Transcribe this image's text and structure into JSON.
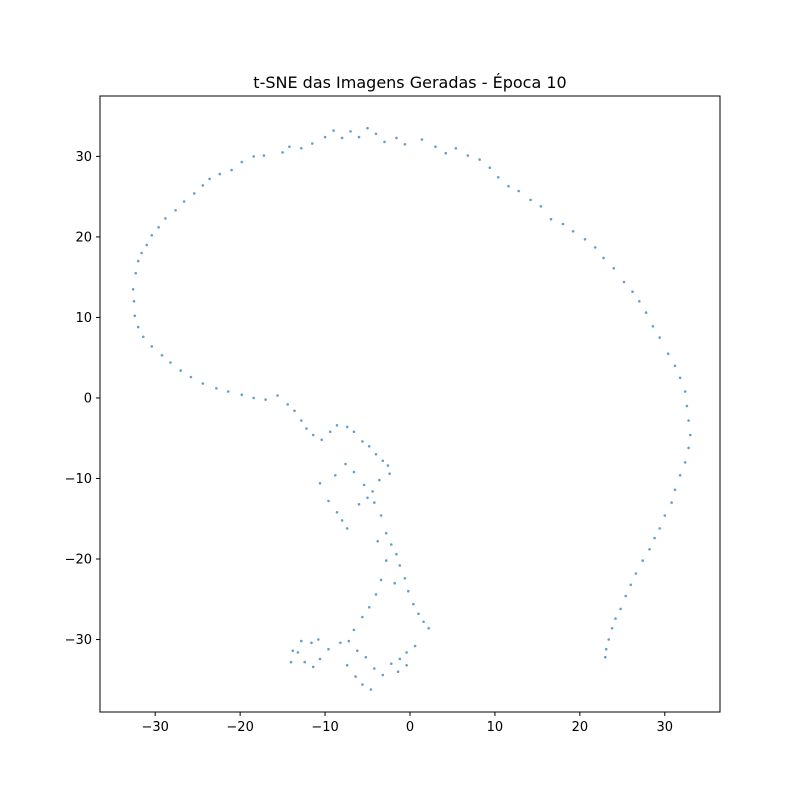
{
  "chart_data": {
    "type": "scatter",
    "title": "t-SNE das Imagens Geradas - Época 10",
    "xlabel": "",
    "ylabel": "",
    "xlim": [
      -36.5,
      36.5
    ],
    "ylim": [
      -39,
      37.5
    ],
    "xticks": [
      -30,
      -20,
      -10,
      0,
      10,
      20,
      30
    ],
    "yticks": [
      -30,
      -20,
      -10,
      0,
      10,
      20,
      30
    ],
    "xtick_labels": [
      "−30",
      "−20",
      "−10",
      "0",
      "10",
      "20",
      "30"
    ],
    "ytick_labels": [
      "−30",
      "−20",
      "−10",
      "0",
      "10",
      "20",
      "30"
    ],
    "grid": false,
    "legend": "none",
    "marker_color": "#1f77b4",
    "series": [
      {
        "points": [
          [
            -32.5,
            12
          ],
          [
            -32.6,
            13.5
          ],
          [
            -32.3,
            15.5
          ],
          [
            -32,
            17
          ],
          [
            -31.6,
            18
          ],
          [
            -31,
            19
          ],
          [
            -30.4,
            20.2
          ],
          [
            -29.6,
            21.2
          ],
          [
            -28.8,
            22.3
          ],
          [
            -27.6,
            23.3
          ],
          [
            -26.6,
            24.4
          ],
          [
            -25.4,
            25.4
          ],
          [
            -24.4,
            26.4
          ],
          [
            -23.6,
            27.2
          ],
          [
            -22.4,
            27.8
          ],
          [
            -21,
            28.3
          ],
          [
            -19.8,
            29.3
          ],
          [
            -18.4,
            30
          ],
          [
            -17.2,
            30.1
          ],
          [
            -15,
            30.5
          ],
          [
            -14.2,
            31.2
          ],
          [
            -12.8,
            31
          ],
          [
            -11.5,
            31.6
          ],
          [
            -10,
            32.4
          ],
          [
            -9,
            33.2
          ],
          [
            -8,
            32.3
          ],
          [
            -7,
            33.1
          ],
          [
            -6,
            32.4
          ],
          [
            -5,
            33.5
          ],
          [
            -4,
            32.8
          ],
          [
            -3,
            31.8
          ],
          [
            -1.6,
            32.3
          ],
          [
            -0.6,
            31.5
          ],
          [
            1.4,
            32.1
          ],
          [
            3,
            31.2
          ],
          [
            4.2,
            30.4
          ],
          [
            5.4,
            31
          ],
          [
            6.8,
            30.1
          ],
          [
            8.2,
            29.6
          ],
          [
            9.4,
            28.6
          ],
          [
            10.4,
            27.4
          ],
          [
            11.6,
            26.3
          ],
          [
            12.8,
            25.7
          ],
          [
            14.2,
            24.6
          ],
          [
            15.4,
            23.8
          ],
          [
            16.6,
            22.2
          ],
          [
            18,
            21.6
          ],
          [
            19.2,
            20.7
          ],
          [
            20.6,
            19.7
          ],
          [
            21.8,
            18.7
          ],
          [
            22.8,
            17.4
          ],
          [
            24,
            16.1
          ],
          [
            25.2,
            14.4
          ],
          [
            26.2,
            13.2
          ],
          [
            27,
            12
          ],
          [
            27.8,
            10.6
          ],
          [
            28.6,
            8.9
          ],
          [
            29.4,
            7.5
          ],
          [
            30.4,
            5.5
          ],
          [
            31.2,
            4
          ],
          [
            31.8,
            2.5
          ],
          [
            32.4,
            0.8
          ],
          [
            32.6,
            -1
          ],
          [
            32.8,
            -2.8
          ],
          [
            33,
            -4.6
          ],
          [
            32.8,
            -6.2
          ],
          [
            32.4,
            -8
          ],
          [
            31.8,
            -9.6
          ],
          [
            31.2,
            -11.4
          ],
          [
            30.8,
            -13
          ],
          [
            30,
            -14.6
          ],
          [
            29.4,
            -16.2
          ],
          [
            28.8,
            -17.4
          ],
          [
            28.2,
            -18.8
          ],
          [
            27.4,
            -20.2
          ],
          [
            26.6,
            -21.8
          ],
          [
            26,
            -23.2
          ],
          [
            25.4,
            -24.6
          ],
          [
            24.8,
            -26.2
          ],
          [
            24.2,
            -27.4
          ],
          [
            23.8,
            -28.6
          ],
          [
            23.4,
            -30
          ],
          [
            23.1,
            -31.2
          ],
          [
            23,
            -32.2
          ],
          [
            -32.4,
            10.2
          ],
          [
            -32,
            8.8
          ],
          [
            -31.4,
            7.6
          ],
          [
            -30.4,
            6.4
          ],
          [
            -29.2,
            5.3
          ],
          [
            -28.2,
            4.4
          ],
          [
            -27,
            3.4
          ],
          [
            -25.8,
            2.6
          ],
          [
            -24.4,
            1.8
          ],
          [
            -22.8,
            1.2
          ],
          [
            -21.4,
            0.8
          ],
          [
            -19.8,
            0.4
          ],
          [
            -18.4,
            0
          ],
          [
            -17,
            -0.2
          ],
          [
            -15.6,
            0.3
          ],
          [
            -14.4,
            -0.8
          ],
          [
            -13.6,
            -1.6
          ],
          [
            -12.8,
            -2.8
          ],
          [
            -12.2,
            -3.8
          ],
          [
            -11.4,
            -4.6
          ],
          [
            -10.4,
            -5.2
          ],
          [
            -9.4,
            -4.2
          ],
          [
            -8.6,
            -3.4
          ],
          [
            -7.4,
            -3.6
          ],
          [
            -6.6,
            -4.2
          ],
          [
            -5.6,
            -5.4
          ],
          [
            -4.8,
            -6
          ],
          [
            -4,
            -7
          ],
          [
            -3.2,
            -7.8
          ],
          [
            -2.6,
            -8.4
          ],
          [
            -10.6,
            -10.6
          ],
          [
            -9.6,
            -12.8
          ],
          [
            -8.6,
            -14.2
          ],
          [
            -8,
            -15.2
          ],
          [
            -7.4,
            -16.2
          ],
          [
            -6,
            -13.2
          ],
          [
            -5,
            -12.4
          ],
          [
            -4.2,
            -13
          ],
          [
            -3.4,
            -14.6
          ],
          [
            -2.8,
            -16.8
          ],
          [
            -2.2,
            -18.2
          ],
          [
            -1.6,
            -19.4
          ],
          [
            -1.2,
            -20.8
          ],
          [
            -0.6,
            -22.4
          ],
          [
            -0.2,
            -24
          ],
          [
            0.4,
            -25.6
          ],
          [
            1,
            -26.8
          ],
          [
            1.6,
            -27.8
          ],
          [
            2.2,
            -28.6
          ],
          [
            -3.4,
            -22.6
          ],
          [
            -4,
            -24.4
          ],
          [
            -4.8,
            -26
          ],
          [
            -5.6,
            -27.2
          ],
          [
            -6.6,
            -28.8
          ],
          [
            -7.2,
            -30.2
          ],
          [
            -6.2,
            -31.4
          ],
          [
            -5.2,
            -32.2
          ],
          [
            -4.2,
            -33.6
          ],
          [
            -3.2,
            -34.4
          ],
          [
            -2.2,
            -33
          ],
          [
            -1.2,
            -32.4
          ],
          [
            -0.4,
            -31.6
          ],
          [
            0.6,
            -30.8
          ],
          [
            -6.4,
            -34.6
          ],
          [
            -5.6,
            -35.6
          ],
          [
            -4.6,
            -36.2
          ],
          [
            -1.4,
            -34
          ],
          [
            -0.4,
            -33.2
          ],
          [
            -7.4,
            -33.2
          ],
          [
            -8.2,
            -30.4
          ],
          [
            -12.8,
            -30.2
          ],
          [
            -13.2,
            -31.6
          ],
          [
            -12.4,
            -32.8
          ],
          [
            -11.4,
            -33.4
          ],
          [
            -10.6,
            -32.4
          ],
          [
            -11.6,
            -30.4
          ],
          [
            -10.8,
            -30
          ],
          [
            -14,
            -32.8
          ],
          [
            -13.8,
            -31.4
          ],
          [
            -9.6,
            -31.2
          ],
          [
            -8.8,
            -9.6
          ],
          [
            -7.6,
            -8.2
          ],
          [
            -6.6,
            -9.2
          ],
          [
            -5.4,
            -10.8
          ],
          [
            -4.4,
            -11.6
          ],
          [
            -3.6,
            -10.2
          ],
          [
            -2.4,
            -9.4
          ],
          [
            -3.8,
            -17.8
          ],
          [
            -2.8,
            -20.2
          ],
          [
            -1.8,
            -23
          ]
        ]
      }
    ]
  }
}
